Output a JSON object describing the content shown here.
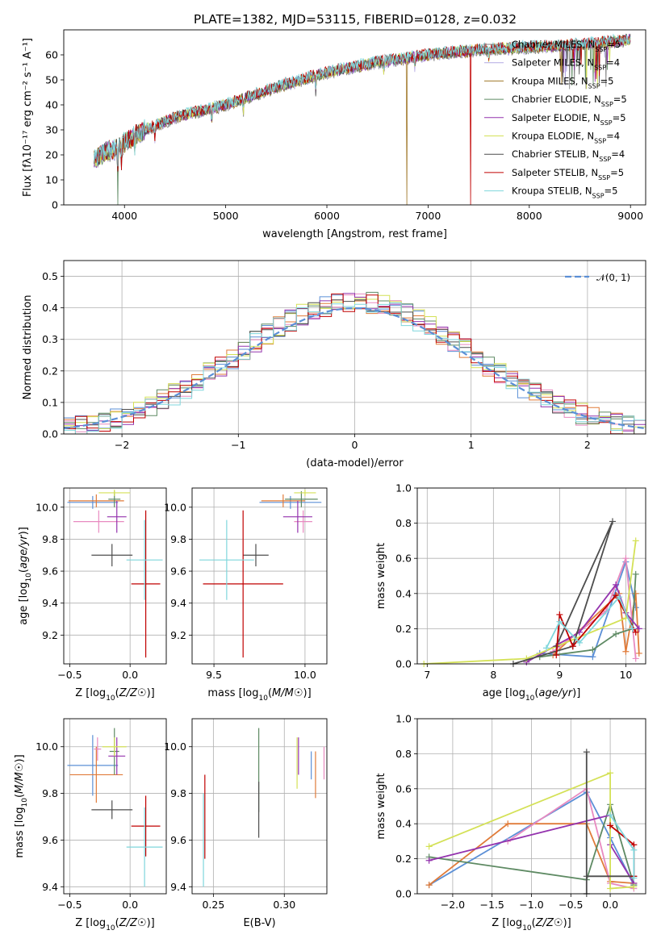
{
  "chart_data": [
    {
      "id": "spectrum",
      "type": "line",
      "title": "PLATE=1382, MJD=53115, FIBERID=0128, z=0.032",
      "xlabel": "wavelength [Angstrom, rest frame]",
      "ylabel": "Flux [fλ10⁻¹⁷ erg cm⁻² s⁻¹ A⁻¹]",
      "xlim": [
        3400,
        9150
      ],
      "ylim": [
        0,
        70
      ],
      "xticks": [
        "4000",
        "5000",
        "6000",
        "7000",
        "8000",
        "9000"
      ],
      "yticks": [
        "0",
        "10",
        "20",
        "30",
        "40",
        "50",
        "60"
      ],
      "legend_position": "top-right",
      "trend": {
        "x": [
          3700,
          3800,
          3900,
          4000,
          4200,
          4500,
          5000,
          5500,
          6000,
          6500,
          7000,
          7500,
          8000,
          8500,
          9000
        ],
        "y": [
          18,
          21,
          22,
          25,
          30,
          35,
          40,
          47,
          53,
          57,
          60,
          62,
          63,
          64,
          66
        ]
      },
      "series": [
        {
          "name": "Chabrier MILES, N_SSP=5",
          "label": "Chabrier MILES, N",
          "sub": "SSP",
          "suffix": "=5",
          "color": "#808080"
        },
        {
          "name": "Salpeter MILES, N_SSP=4",
          "label": "Salpeter MILES, N",
          "sub": "SSP",
          "suffix": "=4",
          "color": "#b4a9e3"
        },
        {
          "name": "Kroupa MILES, N_SSP=5",
          "label": "Kroupa MILES, N",
          "sub": "SSP",
          "suffix": "=5",
          "color": "#a0782a"
        },
        {
          "name": "Chabrier ELODIE, N_SSP=5",
          "label": "Chabrier ELODIE, N",
          "sub": "SSP",
          "suffix": "=5",
          "color": "#5e8a63"
        },
        {
          "name": "Salpeter ELODIE, N_SSP=5",
          "label": "Salpeter ELODIE, N",
          "sub": "SSP",
          "suffix": "=5",
          "color": "#9433ae"
        },
        {
          "name": "Kroupa ELODIE, N_SSP=4",
          "label": "Kroupa ELODIE, N",
          "sub": "SSP",
          "suffix": "=4",
          "color": "#d4e157"
        },
        {
          "name": "Chabrier STELIB, N_SSP=4",
          "label": "Chabrier STELIB, N",
          "sub": "SSP",
          "suffix": "=4",
          "color": "#4d4d4d"
        },
        {
          "name": "Salpeter STELIB, N_SSP=5",
          "label": "Salpeter STELIB, N",
          "sub": "SSP",
          "suffix": "=5",
          "color": "#c00000"
        },
        {
          "name": "Kroupa STELIB, N_SSP=5",
          "label": "Kroupa STELIB, N",
          "sub": "SSP",
          "suffix": "=5",
          "color": "#7fd6dc"
        }
      ]
    },
    {
      "id": "residuals",
      "type": "histogram",
      "xlabel": "(data-model)/error",
      "ylabel": "Normed distribution",
      "xlim": [
        -2.5,
        2.5
      ],
      "ylim": [
        0,
        0.55
      ],
      "xticks": [
        "−2",
        "−1",
        "0",
        "1",
        "2"
      ],
      "yticks": [
        "0.0",
        "0.1",
        "0.2",
        "0.3",
        "0.4",
        "0.5"
      ],
      "grid": true,
      "legend_position": "top-right",
      "legend": "𝒩(0, 1)",
      "reference": {
        "name": "N(0,1)",
        "mean": 0,
        "std": 1,
        "color": "#5b8fd6"
      },
      "bin_width": 0.1,
      "colors": [
        "#5b8fd6",
        "#e07b39",
        "#e88ac0",
        "#5e8a63",
        "#9433ae",
        "#d4e157",
        "#4d4d4d",
        "#c00000",
        "#7fd6dc"
      ]
    },
    {
      "id": "age-vs-Z",
      "type": "errorbar",
      "xlabel": "Z [log10(Z/Z☉)]",
      "ylabel": "age  [log10(age/yr)]",
      "xlim": [
        -0.55,
        0.3
      ],
      "ylim": [
        9.02,
        10.12
      ],
      "xticks": [
        "−0.5",
        "0.0"
      ],
      "yticks": [
        "9.2",
        "9.4",
        "9.6",
        "9.8",
        "10.0"
      ],
      "grid": true,
      "points": [
        {
          "x": -0.31,
          "y": 10.03,
          "xerr": 0.21,
          "yerr": 0.04,
          "color": "#5b8fd6"
        },
        {
          "x": -0.28,
          "y": 10.04,
          "xerr": 0.23,
          "yerr": 0.04,
          "color": "#e07b39"
        },
        {
          "x": -0.26,
          "y": 9.91,
          "xerr": 0.21,
          "yerr": 0.07,
          "color": "#e88ac0"
        },
        {
          "x": -0.13,
          "y": 10.05,
          "xerr": 0.05,
          "yerr": 0.05,
          "color": "#5e8a63"
        },
        {
          "x": -0.11,
          "y": 9.94,
          "xerr": 0.08,
          "yerr": 0.1,
          "color": "#9433ae"
        },
        {
          "x": -0.13,
          "y": 10.09,
          "xerr": 0.13,
          "yerr": 0.02,
          "color": "#d4e157"
        },
        {
          "x": -0.15,
          "y": 9.7,
          "xerr": 0.17,
          "yerr": 0.07,
          "color": "#4d4d4d"
        },
        {
          "x": 0.13,
          "y": 9.52,
          "xerr": 0.12,
          "yerr": 0.46,
          "color": "#c00000"
        },
        {
          "x": 0.12,
          "y": 9.67,
          "xerr": 0.15,
          "yerr": 0.25,
          "color": "#7fd6dc"
        }
      ]
    },
    {
      "id": "age-vs-mass",
      "type": "errorbar",
      "xlabel": "mass [log10(M/M☉)]",
      "ylabel": "",
      "xlim": [
        9.38,
        10.12
      ],
      "ylim": [
        9.02,
        10.12
      ],
      "xticks": [
        "9.5",
        "10.0"
      ],
      "yticks": [
        "9.2",
        "9.4",
        "9.6",
        "9.8",
        "10.0"
      ],
      "grid": true,
      "points": [
        {
          "x": 9.92,
          "y": 10.03,
          "xerr": 0.17,
          "yerr": 0.04,
          "color": "#5b8fd6"
        },
        {
          "x": 9.88,
          "y": 10.04,
          "xerr": 0.12,
          "yerr": 0.04,
          "color": "#e07b39"
        },
        {
          "x": 9.99,
          "y": 9.91,
          "xerr": 0.05,
          "yerr": 0.07,
          "color": "#e88ac0"
        },
        {
          "x": 9.98,
          "y": 10.05,
          "xerr": 0.09,
          "yerr": 0.05,
          "color": "#5e8a63"
        },
        {
          "x": 9.96,
          "y": 9.94,
          "xerr": 0.08,
          "yerr": 0.1,
          "color": "#9433ae"
        },
        {
          "x": 10.0,
          "y": 10.09,
          "xerr": 0.06,
          "yerr": 0.02,
          "color": "#d4e157"
        },
        {
          "x": 9.73,
          "y": 9.7,
          "xerr": 0.07,
          "yerr": 0.07,
          "color": "#4d4d4d"
        },
        {
          "x": 9.66,
          "y": 9.52,
          "xerr": 0.22,
          "yerr": 0.46,
          "color": "#c00000"
        },
        {
          "x": 9.57,
          "y": 9.67,
          "xerr": 0.15,
          "yerr": 0.25,
          "color": "#7fd6dc"
        }
      ]
    },
    {
      "id": "weight-vs-age",
      "type": "line",
      "xlabel": "age  [log10(age/yr)]",
      "ylabel": "mass weight",
      "xlim": [
        6.85,
        10.3
      ],
      "ylim": [
        0,
        1.0
      ],
      "xticks": [
        "7",
        "8",
        "9",
        "10"
      ],
      "yticks": [
        "0.0",
        "0.2",
        "0.4",
        "0.6",
        "0.8",
        "1.0"
      ],
      "grid": true,
      "series": [
        {
          "color": "#5b8fd6",
          "pts": [
            [
              8.7,
              0.06
            ],
            [
              9.5,
              0.04
            ],
            [
              10.0,
              0.58
            ],
            [
              10.15,
              0.32
            ]
          ]
        },
        {
          "color": "#e07b39",
          "pts": [
            [
              8.9,
              0.05
            ],
            [
              9.9,
              0.4
            ],
            [
              10.0,
              0.07
            ],
            [
              10.15,
              0.4
            ],
            [
              10.2,
              0.06
            ]
          ]
        },
        {
          "color": "#e88ac0",
          "pts": [
            [
              8.9,
              0.07
            ],
            [
              9.7,
              0.3
            ],
            [
              10.0,
              0.6
            ],
            [
              10.15,
              0.03
            ]
          ]
        },
        {
          "color": "#5e8a63",
          "pts": [
            [
              8.7,
              0.04
            ],
            [
              9.5,
              0.08
            ],
            [
              9.85,
              0.17
            ],
            [
              10.1,
              0.2
            ],
            [
              10.15,
              0.51
            ]
          ]
        },
        {
          "color": "#9433ae",
          "pts": [
            [
              8.5,
              0.01
            ],
            [
              9.3,
              0.18
            ],
            [
              9.85,
              0.45
            ],
            [
              10.0,
              0.29
            ],
            [
              10.2,
              0.2
            ]
          ]
        },
        {
          "color": "#d4e157",
          "pts": [
            [
              6.95,
              0.0
            ],
            [
              8.5,
              0.03
            ],
            [
              10.0,
              0.26
            ],
            [
              10.15,
              0.7
            ]
          ]
        },
        {
          "color": "#4d4d4d",
          "pts": [
            [
              8.3,
              0.0
            ],
            [
              9.2,
              0.1
            ],
            [
              9.8,
              0.81
            ],
            [
              8.95,
              0.1
            ]
          ]
        },
        {
          "color": "#c00000",
          "pts": [
            [
              8.95,
              0.05
            ],
            [
              9.0,
              0.28
            ],
            [
              9.2,
              0.1
            ],
            [
              9.85,
              0.39
            ],
            [
              10.15,
              0.18
            ]
          ]
        },
        {
          "color": "#7fd6dc",
          "pts": [
            [
              8.8,
              0.09
            ],
            [
              9.0,
              0.24
            ],
            [
              9.3,
              0.12
            ],
            [
              9.9,
              0.38
            ],
            [
              10.1,
              0.2
            ]
          ]
        }
      ]
    },
    {
      "id": "mass-vs-Z",
      "type": "errorbar",
      "xlabel": "Z [log10(Z/Z☉)]",
      "ylabel": "mass [log10(M/M☉)]",
      "xlim": [
        -0.55,
        0.3
      ],
      "ylim": [
        9.37,
        10.12
      ],
      "xticks": [
        "−0.5",
        "0.0"
      ],
      "yticks": [
        "9.4",
        "9.6",
        "9.8",
        "10.0"
      ],
      "grid": true,
      "points": [
        {
          "x": -0.31,
          "y": 9.92,
          "xerr": 0.21,
          "yerr": 0.13,
          "color": "#5b8fd6"
        },
        {
          "x": -0.28,
          "y": 9.88,
          "xerr": 0.22,
          "yerr": 0.12,
          "color": "#e07b39"
        },
        {
          "x": -0.27,
          "y": 9.99,
          "xerr": 0.03,
          "yerr": 0.05,
          "color": "#e88ac0"
        },
        {
          "x": -0.13,
          "y": 9.98,
          "xerr": 0.04,
          "yerr": 0.1,
          "color": "#5e8a63"
        },
        {
          "x": -0.11,
          "y": 9.96,
          "xerr": 0.07,
          "yerr": 0.08,
          "color": "#9433ae"
        },
        {
          "x": -0.13,
          "y": 10.0,
          "xerr": 0.1,
          "yerr": 0.04,
          "color": "#d4e157"
        },
        {
          "x": -0.15,
          "y": 9.73,
          "xerr": 0.17,
          "yerr": 0.04,
          "color": "#4d4d4d"
        },
        {
          "x": 0.13,
          "y": 9.66,
          "xerr": 0.12,
          "yerr": 0.13,
          "color": "#c00000"
        },
        {
          "x": 0.12,
          "y": 9.57,
          "xerr": 0.15,
          "yerr": 0.17,
          "color": "#7fd6dc"
        }
      ]
    },
    {
      "id": "mass-vs-ebv",
      "type": "errorbar",
      "xlabel": "E(B-V)",
      "ylabel": "",
      "xlim": [
        0.235,
        0.33
      ],
      "ylim": [
        9.37,
        10.12
      ],
      "xticks": [
        "0.25",
        "0.30"
      ],
      "yticks": [
        "9.4",
        "9.6",
        "9.8",
        "10.0"
      ],
      "grid": true,
      "points": [
        {
          "x": 0.319,
          "y": 9.92,
          "xerr": 0,
          "yerr": 0.06,
          "color": "#5b8fd6"
        },
        {
          "x": 0.322,
          "y": 9.88,
          "xerr": 0,
          "yerr": 0.1,
          "color": "#e07b39"
        },
        {
          "x": 0.328,
          "y": 9.93,
          "xerr": 0,
          "yerr": 0.07,
          "color": "#e88ac0"
        },
        {
          "x": 0.282,
          "y": 9.9,
          "xerr": 0,
          "yerr": 0.18,
          "color": "#5e8a63"
        },
        {
          "x": 0.31,
          "y": 9.96,
          "xerr": 0,
          "yerr": 0.08,
          "color": "#9433ae"
        },
        {
          "x": 0.309,
          "y": 9.93,
          "xerr": 0,
          "yerr": 0.11,
          "color": "#d4e157"
        },
        {
          "x": 0.282,
          "y": 9.73,
          "xerr": 0,
          "yerr": 0.12,
          "color": "#4d4d4d"
        },
        {
          "x": 0.244,
          "y": 9.7,
          "xerr": 0,
          "yerr": 0.18,
          "color": "#c00000"
        },
        {
          "x": 0.243,
          "y": 9.6,
          "xerr": 0,
          "yerr": 0.2,
          "color": "#7fd6dc"
        }
      ]
    },
    {
      "id": "weight-vs-Z",
      "type": "line",
      "xlabel": "Z [log10(Z/Z☉)]",
      "ylabel": "mass weight",
      "xlim": [
        -2.45,
        0.45
      ],
      "ylim": [
        0,
        1.0
      ],
      "xticks": [
        "−2.0",
        "−1.5",
        "−1.0",
        "−0.5",
        "0.0"
      ],
      "yticks": [
        "0.0",
        "0.2",
        "0.4",
        "0.6",
        "0.8",
        "1.0"
      ],
      "grid": true,
      "series": [
        {
          "color": "#5b8fd6",
          "pts": [
            [
              -2.3,
              0.05
            ],
            [
              -0.3,
              0.58
            ],
            [
              0.0,
              0.32
            ],
            [
              0.3,
              0.05
            ]
          ]
        },
        {
          "color": "#e07b39",
          "pts": [
            [
              -2.3,
              0.05
            ],
            [
              -1.3,
              0.4
            ],
            [
              -0.3,
              0.4
            ],
            [
              0.0,
              0.07
            ],
            [
              0.3,
              0.06
            ]
          ]
        },
        {
          "color": "#e88ac0",
          "pts": [
            [
              -1.3,
              0.3
            ],
            [
              -0.3,
              0.6
            ],
            [
              0.0,
              0.06
            ],
            [
              0.3,
              0.03
            ]
          ]
        },
        {
          "color": "#5e8a63",
          "pts": [
            [
              -2.3,
              0.21
            ],
            [
              -0.3,
              0.08
            ],
            [
              0.0,
              0.51
            ],
            [
              0.3,
              0.05
            ]
          ]
        },
        {
          "color": "#9433ae",
          "pts": [
            [
              -2.3,
              0.19
            ],
            [
              0.0,
              0.45
            ],
            [
              0.0,
              0.28
            ],
            [
              0.3,
              0.06
            ]
          ]
        },
        {
          "color": "#d4e157",
          "pts": [
            [
              -2.3,
              0.27
            ],
            [
              0.0,
              0.69
            ],
            [
              0.0,
              0.03
            ],
            [
              0.3,
              0.04
            ]
          ]
        },
        {
          "color": "#4d4d4d",
          "pts": [
            [
              -0.3,
              0.0
            ],
            [
              -0.3,
              0.81
            ],
            [
              -0.3,
              0.1
            ],
            [
              0.3,
              0.1
            ]
          ]
        },
        {
          "color": "#c00000",
          "pts": [
            [
              0.0,
              0.39
            ],
            [
              0.3,
              0.28
            ],
            [
              0.3,
              0.1
            ]
          ]
        },
        {
          "color": "#7fd6dc",
          "pts": [
            [
              0.0,
              0.45
            ],
            [
              0.3,
              0.25
            ],
            [
              0.3,
              0.09
            ]
          ]
        }
      ]
    }
  ]
}
